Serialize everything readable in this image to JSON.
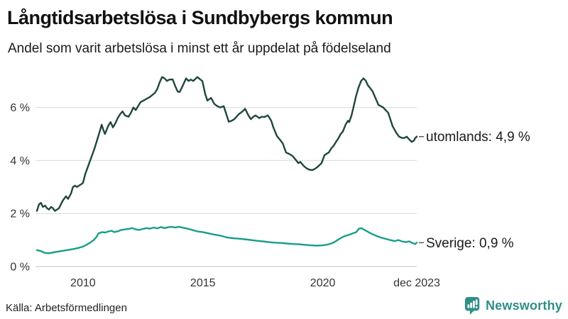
{
  "header": {
    "title": "Långtidsarbetslösa i Sundbybergs kommun",
    "subtitle": "Andel som varit arbetslösa i minst ett år uppdelat på födelseland"
  },
  "footer": {
    "source": "Källa: Arbetsförmedlingen",
    "brand": "Newsworthy",
    "brand_icon": "newsworthy-bar-chart-speech-bubble",
    "brand_color": "#2e8f86"
  },
  "chart_data": {
    "type": "line",
    "title": "Långtidsarbetslösa i Sundbybergs kommun",
    "subtitle": "Andel som varit arbetslösa i minst ett år uppdelat på födelseland",
    "unit": "%",
    "grid": true,
    "legend_position": "end-of-line-right",
    "x_axis": {
      "range": [
        2008.08,
        2023.92
      ],
      "ticks": [
        2010,
        2015,
        2020,
        2023.92
      ],
      "tick_labels": [
        "2010",
        "2015",
        "2020",
        "dec 2023"
      ]
    },
    "y_axis": {
      "range": [
        0,
        7.35
      ],
      "ticks": [
        0,
        2,
        4,
        6
      ],
      "tick_labels": [
        "0 %",
        "2 %",
        "4 %",
        "6 %"
      ],
      "gridline_color": "#e1e1e1",
      "zeroline_color": "#cfcfcf"
    },
    "series": [
      {
        "name": "utomlands",
        "label": "utomlands: 4,9 %",
        "last_value": 4.9,
        "color": "#1f463f",
        "points": [
          [
            2008.08,
            2.1
          ],
          [
            2008.17,
            2.35
          ],
          [
            2008.25,
            2.4
          ],
          [
            2008.33,
            2.25
          ],
          [
            2008.42,
            2.3
          ],
          [
            2008.5,
            2.2
          ],
          [
            2008.58,
            2.15
          ],
          [
            2008.67,
            2.25
          ],
          [
            2008.75,
            2.2
          ],
          [
            2008.83,
            2.1
          ],
          [
            2008.92,
            2.15
          ],
          [
            2009.0,
            2.2
          ],
          [
            2009.08,
            2.35
          ],
          [
            2009.17,
            2.5
          ],
          [
            2009.29,
            2.65
          ],
          [
            2009.38,
            2.55
          ],
          [
            2009.5,
            2.75
          ],
          [
            2009.58,
            3.0
          ],
          [
            2009.67,
            3.05
          ],
          [
            2009.75,
            3.0
          ],
          [
            2009.83,
            3.05
          ],
          [
            2009.92,
            3.1
          ],
          [
            2010.0,
            3.15
          ],
          [
            2010.1,
            3.5
          ],
          [
            2010.2,
            3.75
          ],
          [
            2010.3,
            4.0
          ],
          [
            2010.4,
            4.25
          ],
          [
            2010.5,
            4.5
          ],
          [
            2010.6,
            4.8
          ],
          [
            2010.7,
            5.1
          ],
          [
            2010.78,
            5.35
          ],
          [
            2010.85,
            5.15
          ],
          [
            2010.92,
            5.0
          ],
          [
            2011.05,
            5.3
          ],
          [
            2011.15,
            5.45
          ],
          [
            2011.25,
            5.25
          ],
          [
            2011.35,
            5.4
          ],
          [
            2011.45,
            5.6
          ],
          [
            2011.55,
            5.75
          ],
          [
            2011.65,
            5.85
          ],
          [
            2011.75,
            5.7
          ],
          [
            2011.9,
            5.65
          ],
          [
            2012.0,
            5.8
          ],
          [
            2012.1,
            6.0
          ],
          [
            2012.2,
            5.9
          ],
          [
            2012.3,
            6.05
          ],
          [
            2012.4,
            6.2
          ],
          [
            2012.6,
            6.3
          ],
          [
            2012.8,
            6.4
          ],
          [
            2013.0,
            6.55
          ],
          [
            2013.1,
            6.7
          ],
          [
            2013.2,
            6.95
          ],
          [
            2013.3,
            7.15
          ],
          [
            2013.4,
            7.1
          ],
          [
            2013.5,
            7.0
          ],
          [
            2013.6,
            7.05
          ],
          [
            2013.74,
            7.06
          ],
          [
            2013.85,
            6.8
          ],
          [
            2013.95,
            6.6
          ],
          [
            2014.03,
            6.58
          ],
          [
            2014.15,
            6.8
          ],
          [
            2014.3,
            7.1
          ],
          [
            2014.4,
            7.0
          ],
          [
            2014.5,
            7.05
          ],
          [
            2014.6,
            7.0
          ],
          [
            2014.77,
            7.15
          ],
          [
            2014.9,
            7.05
          ],
          [
            2014.98,
            7.0
          ],
          [
            2015.1,
            6.5
          ],
          [
            2015.19,
            6.26
          ],
          [
            2015.34,
            6.36
          ],
          [
            2015.48,
            6.13
          ],
          [
            2015.6,
            6.05
          ],
          [
            2015.72,
            6.0
          ],
          [
            2015.87,
            6.05
          ],
          [
            2016.08,
            5.46
          ],
          [
            2016.2,
            5.5
          ],
          [
            2016.31,
            5.56
          ],
          [
            2016.5,
            5.75
          ],
          [
            2016.65,
            5.85
          ],
          [
            2016.76,
            5.95
          ],
          [
            2016.9,
            5.7
          ],
          [
            2017.0,
            5.56
          ],
          [
            2017.1,
            5.65
          ],
          [
            2017.2,
            5.7
          ],
          [
            2017.35,
            5.6
          ],
          [
            2017.45,
            5.65
          ],
          [
            2017.56,
            5.64
          ],
          [
            2017.71,
            5.7
          ],
          [
            2017.85,
            5.5
          ],
          [
            2017.94,
            5.25
          ],
          [
            2018.09,
            4.92
          ],
          [
            2018.2,
            4.8
          ],
          [
            2018.33,
            4.65
          ],
          [
            2018.47,
            4.3
          ],
          [
            2018.6,
            4.25
          ],
          [
            2018.74,
            4.17
          ],
          [
            2018.85,
            4.05
          ],
          [
            2018.98,
            3.9
          ],
          [
            2019.06,
            3.95
          ],
          [
            2019.2,
            3.8
          ],
          [
            2019.33,
            3.7
          ],
          [
            2019.45,
            3.65
          ],
          [
            2019.57,
            3.64
          ],
          [
            2019.7,
            3.7
          ],
          [
            2019.8,
            3.77
          ],
          [
            2019.95,
            3.9
          ],
          [
            2020.07,
            4.2
          ],
          [
            2020.15,
            4.25
          ],
          [
            2020.25,
            4.3
          ],
          [
            2020.35,
            4.45
          ],
          [
            2020.45,
            4.55
          ],
          [
            2020.55,
            4.7
          ],
          [
            2020.66,
            4.85
          ],
          [
            2020.75,
            5.0
          ],
          [
            2020.84,
            5.1
          ],
          [
            2020.95,
            5.35
          ],
          [
            2021.05,
            5.5
          ],
          [
            2021.1,
            5.45
          ],
          [
            2021.2,
            5.7
          ],
          [
            2021.28,
            6.0
          ],
          [
            2021.38,
            6.4
          ],
          [
            2021.49,
            6.75
          ],
          [
            2021.6,
            7.0
          ],
          [
            2021.7,
            7.1
          ],
          [
            2021.8,
            7.0
          ],
          [
            2021.87,
            6.85
          ],
          [
            2022.0,
            6.7
          ],
          [
            2022.08,
            6.6
          ],
          [
            2022.2,
            6.35
          ],
          [
            2022.32,
            6.1
          ],
          [
            2022.42,
            6.05
          ],
          [
            2022.52,
            6.0
          ],
          [
            2022.62,
            5.9
          ],
          [
            2022.73,
            5.8
          ],
          [
            2022.82,
            5.55
          ],
          [
            2022.91,
            5.3
          ],
          [
            2023.06,
            5.05
          ],
          [
            2023.18,
            4.9
          ],
          [
            2023.3,
            4.85
          ],
          [
            2023.41,
            4.85
          ],
          [
            2023.5,
            4.9
          ],
          [
            2023.6,
            4.8
          ],
          [
            2023.71,
            4.7
          ],
          [
            2023.8,
            4.75
          ],
          [
            2023.86,
            4.85
          ],
          [
            2023.92,
            4.9
          ]
        ]
      },
      {
        "name": "Sverige",
        "label": "Sverige: 0,9 %",
        "last_value": 0.9,
        "color": "#189d8a",
        "points": [
          [
            2008.08,
            0.62
          ],
          [
            2008.25,
            0.58
          ],
          [
            2008.4,
            0.52
          ],
          [
            2008.55,
            0.5
          ],
          [
            2008.7,
            0.52
          ],
          [
            2008.85,
            0.55
          ],
          [
            2009.0,
            0.57
          ],
          [
            2009.2,
            0.6
          ],
          [
            2009.4,
            0.63
          ],
          [
            2009.6,
            0.66
          ],
          [
            2009.8,
            0.7
          ],
          [
            2010.0,
            0.75
          ],
          [
            2010.15,
            0.82
          ],
          [
            2010.3,
            0.9
          ],
          [
            2010.45,
            1.0
          ],
          [
            2010.55,
            1.1
          ],
          [
            2010.65,
            1.25
          ],
          [
            2010.8,
            1.3
          ],
          [
            2010.92,
            1.28
          ],
          [
            2011.05,
            1.32
          ],
          [
            2011.2,
            1.35
          ],
          [
            2011.3,
            1.3
          ],
          [
            2011.45,
            1.33
          ],
          [
            2011.6,
            1.38
          ],
          [
            2011.75,
            1.4
          ],
          [
            2011.9,
            1.42
          ],
          [
            2012.05,
            1.45
          ],
          [
            2012.2,
            1.4
          ],
          [
            2012.35,
            1.38
          ],
          [
            2012.5,
            1.42
          ],
          [
            2012.65,
            1.45
          ],
          [
            2012.8,
            1.43
          ],
          [
            2012.95,
            1.47
          ],
          [
            2013.1,
            1.44
          ],
          [
            2013.25,
            1.49
          ],
          [
            2013.4,
            1.45
          ],
          [
            2013.55,
            1.48
          ],
          [
            2013.7,
            1.5
          ],
          [
            2013.85,
            1.47
          ],
          [
            2014.0,
            1.5
          ],
          [
            2014.2,
            1.46
          ],
          [
            2014.4,
            1.42
          ],
          [
            2014.6,
            1.37
          ],
          [
            2014.8,
            1.32
          ],
          [
            2015.0,
            1.3
          ],
          [
            2015.25,
            1.25
          ],
          [
            2015.5,
            1.2
          ],
          [
            2015.75,
            1.16
          ],
          [
            2016.0,
            1.1
          ],
          [
            2016.25,
            1.07
          ],
          [
            2016.5,
            1.05
          ],
          [
            2016.75,
            1.03
          ],
          [
            2017.0,
            1.0
          ],
          [
            2017.25,
            0.97
          ],
          [
            2017.5,
            0.95
          ],
          [
            2017.75,
            0.92
          ],
          [
            2018.0,
            0.9
          ],
          [
            2018.25,
            0.89
          ],
          [
            2018.5,
            0.87
          ],
          [
            2018.75,
            0.85
          ],
          [
            2019.0,
            0.84
          ],
          [
            2019.25,
            0.82
          ],
          [
            2019.5,
            0.8
          ],
          [
            2019.75,
            0.79
          ],
          [
            2020.0,
            0.8
          ],
          [
            2020.2,
            0.83
          ],
          [
            2020.35,
            0.87
          ],
          [
            2020.5,
            0.93
          ],
          [
            2020.65,
            1.02
          ],
          [
            2020.8,
            1.1
          ],
          [
            2020.95,
            1.16
          ],
          [
            2021.1,
            1.2
          ],
          [
            2021.25,
            1.25
          ],
          [
            2021.4,
            1.3
          ],
          [
            2021.5,
            1.42
          ],
          [
            2021.6,
            1.45
          ],
          [
            2021.7,
            1.4
          ],
          [
            2021.85,
            1.33
          ],
          [
            2022.0,
            1.25
          ],
          [
            2022.2,
            1.17
          ],
          [
            2022.4,
            1.1
          ],
          [
            2022.6,
            1.05
          ],
          [
            2022.8,
            1.0
          ],
          [
            2023.0,
            0.96
          ],
          [
            2023.15,
            1.0
          ],
          [
            2023.3,
            0.95
          ],
          [
            2023.45,
            0.92
          ],
          [
            2023.6,
            0.95
          ],
          [
            2023.75,
            0.88
          ],
          [
            2023.85,
            0.85
          ],
          [
            2023.92,
            0.9
          ]
        ]
      }
    ]
  }
}
